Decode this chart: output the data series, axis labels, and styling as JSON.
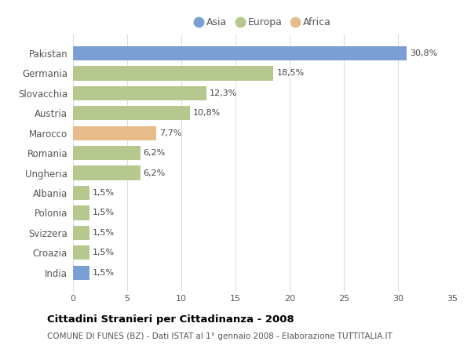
{
  "categories": [
    "Pakistan",
    "Germania",
    "Slovacchia",
    "Austria",
    "Marocco",
    "Romania",
    "Ungheria",
    "Albania",
    "Polonia",
    "Svizzera",
    "Croazia",
    "India"
  ],
  "values": [
    30.8,
    18.5,
    12.3,
    10.8,
    7.7,
    6.2,
    6.2,
    1.5,
    1.5,
    1.5,
    1.5,
    1.5
  ],
  "labels": [
    "30,8%",
    "18,5%",
    "12,3%",
    "10,8%",
    "7,7%",
    "6,2%",
    "6,2%",
    "1,5%",
    "1,5%",
    "1,5%",
    "1,5%",
    "1,5%"
  ],
  "continents": [
    "Asia",
    "Europa",
    "Europa",
    "Europa",
    "Africa",
    "Europa",
    "Europa",
    "Europa",
    "Europa",
    "Europa",
    "Europa",
    "Asia"
  ],
  "colors": {
    "Asia": "#7b9fd4",
    "Europa": "#b5c98e",
    "Africa": "#e8bc8a"
  },
  "legend_labels": [
    "Asia",
    "Europa",
    "Africa"
  ],
  "legend_colors": [
    "#7b9fd4",
    "#b5c98e",
    "#e8bc8a"
  ],
  "xlim": [
    0,
    35
  ],
  "xticks": [
    0,
    5,
    10,
    15,
    20,
    25,
    30,
    35
  ],
  "title": "Cittadini Stranieri per Cittadinanza - 2008",
  "subtitle": "COMUNE DI FUNES (BZ) - Dati ISTAT al 1° gennaio 2008 - Elaborazione TUTTITALIA.IT",
  "bg_color": "#ffffff",
  "plot_bg_color": "#ffffff",
  "grid_color": "#dddddd",
  "text_color": "#555555",
  "label_color": "#444444"
}
